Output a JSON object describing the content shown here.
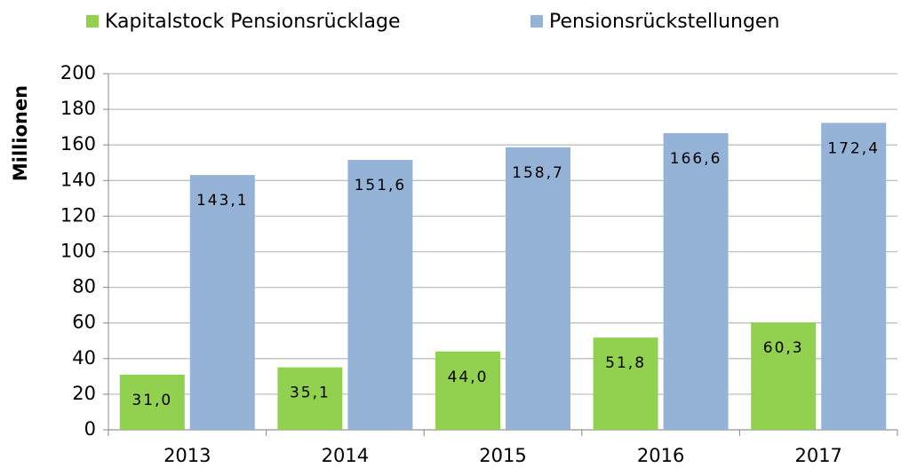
{
  "chart_data": {
    "type": "bar",
    "categories": [
      "2013",
      "2014",
      "2015",
      "2016",
      "2017"
    ],
    "series": [
      {
        "name": "Kapitalstock Pensionsrücklage",
        "color": "#92d050",
        "values": [
          31.0,
          35.1,
          44.0,
          51.8,
          60.3
        ],
        "value_labels": [
          "31,0",
          "35,1",
          "44,0",
          "51,8",
          "60,3"
        ]
      },
      {
        "name": "Pensionsrückstellungen",
        "color": "#95b3d7",
        "values": [
          143.1,
          151.6,
          158.7,
          166.6,
          172.4
        ],
        "value_labels": [
          "143,1",
          "151,6",
          "158,7",
          "166,6",
          "172,4"
        ]
      }
    ],
    "ylabel": "Millionen",
    "ylim": [
      0,
      200
    ],
    "yticks": [
      0,
      20,
      40,
      60,
      80,
      100,
      120,
      140,
      160,
      180,
      200
    ],
    "grid": true,
    "legend": "top"
  }
}
